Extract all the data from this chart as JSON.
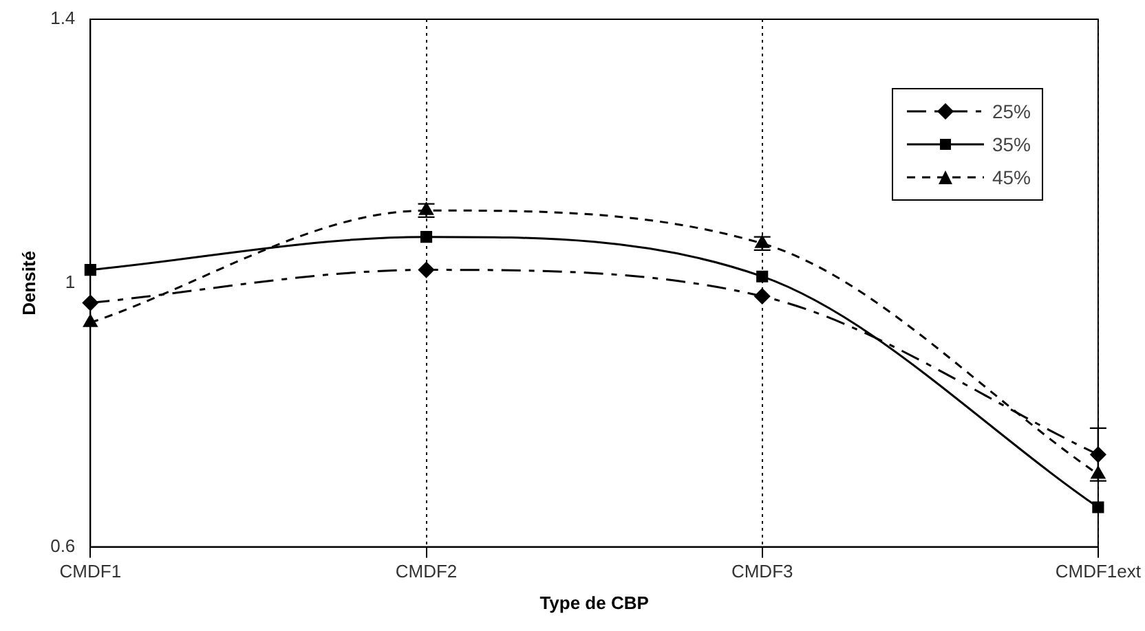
{
  "chart_data": {
    "type": "line",
    "xlabel": "Type de CBP",
    "ylabel": "Densité",
    "categories": [
      "CMDF1",
      "CMDF2",
      "CMDF3",
      "CMDF1ext"
    ],
    "ylim": [
      0.6,
      1.4
    ],
    "yticks": [
      0.6,
      1,
      1.4
    ],
    "grid": "x",
    "legend": "top right",
    "series": [
      {
        "name": "25%",
        "color": "#000000",
        "values": [
          0.97,
          1.02,
          0.98,
          0.74
        ],
        "errors": [
          null,
          null,
          null,
          0.04
        ],
        "marker": "diamond",
        "line_style": "dashdot"
      },
      {
        "name": "35%",
        "color": "#000000",
        "values": [
          1.02,
          1.07,
          1.01,
          0.66
        ],
        "marker": "square",
        "line_style": "solid"
      },
      {
        "name": "45%",
        "color": "#000000",
        "values": [
          0.94,
          1.11,
          1.06,
          0.71
        ],
        "errors": [
          null,
          0.01,
          0.01,
          null
        ],
        "marker": "triangle",
        "line_style": "dashed"
      }
    ]
  }
}
